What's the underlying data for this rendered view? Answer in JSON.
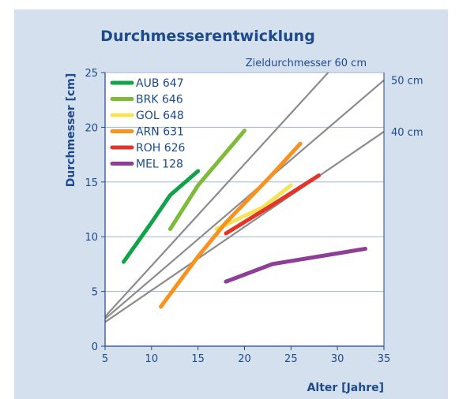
{
  "chart_data": {
    "type": "line",
    "title": "Durchmesserentwicklung",
    "xlabel": "Alter [Jahre]",
    "ylabel": "Durchmesser [cm]",
    "xlim": [
      5,
      35
    ],
    "ylim": [
      0,
      25
    ],
    "x_ticks": [
      5,
      10,
      15,
      20,
      25,
      30,
      35
    ],
    "y_ticks": [
      0,
      5,
      10,
      15,
      20,
      25
    ],
    "grid": "horizontal",
    "legend_position": "top-left",
    "reference_title": "Zieldurchmesser 60 cm",
    "reference_lines": [
      {
        "label": "",
        "points": [
          [
            5,
            2.7
          ],
          [
            29,
            25
          ]
        ]
      },
      {
        "label": "50 cm",
        "points": [
          [
            5,
            2.5
          ],
          [
            35,
            24.3
          ]
        ]
      },
      {
        "label": "40 cm",
        "points": [
          [
            5,
            2.2
          ],
          [
            35,
            19.6
          ]
        ]
      }
    ],
    "reference_color": "#8c8c8c",
    "series": [
      {
        "name": "AUB 647",
        "color": "#11a24a",
        "points": [
          [
            7,
            7.7
          ],
          [
            10,
            11.3
          ],
          [
            12,
            13.8
          ],
          [
            15,
            16
          ]
        ]
      },
      {
        "name": "BRK 646",
        "color": "#7dbb39",
        "points": [
          [
            12,
            10.7
          ],
          [
            15,
            14.7
          ],
          [
            20,
            19.7
          ]
        ]
      },
      {
        "name": "GOL 648",
        "color": "#f8e257",
        "points": [
          [
            17,
            10.7
          ],
          [
            22,
            12.7
          ],
          [
            25,
            14.7
          ]
        ]
      },
      {
        "name": "ARN 631",
        "color": "#f7921e",
        "points": [
          [
            11,
            3.6
          ],
          [
            15,
            8.2
          ],
          [
            18,
            11.3
          ],
          [
            23,
            15.7
          ],
          [
            26,
            18.5
          ]
        ]
      },
      {
        "name": "ROH 626",
        "color": "#e53327",
        "points": [
          [
            18,
            10.3
          ],
          [
            23,
            12.9
          ],
          [
            28,
            15.6
          ]
        ]
      },
      {
        "name": "MEL 128",
        "color": "#8d3e97",
        "points": [
          [
            18,
            5.9
          ],
          [
            23,
            7.5
          ],
          [
            33,
            8.9
          ]
        ]
      }
    ]
  }
}
